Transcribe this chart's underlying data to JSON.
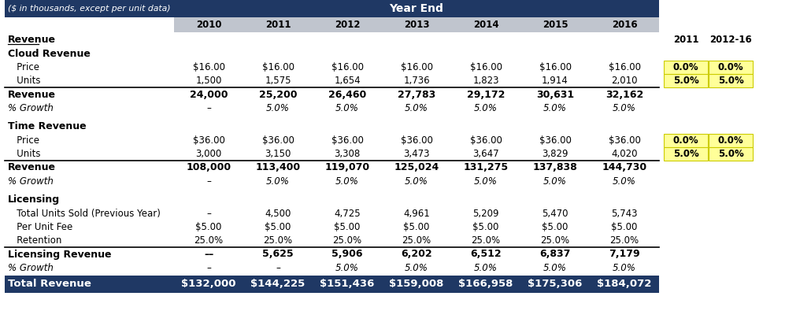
{
  "title_left": "($ in thousands, except per unit data)",
  "title_center": "Year End",
  "header_years": [
    "2010",
    "2011",
    "2012",
    "2013",
    "2014",
    "2015",
    "2016"
  ],
  "extra_headers": [
    "2011",
    "2012-16"
  ],
  "dark_blue": "#1F3864",
  "light_gray_header": "#C0C5CE",
  "yellow_bg": "#FFFF99",
  "yellow_border": "#CCCC00",
  "white": "#FFFFFF",
  "black": "#000000",
  "rows": [
    {
      "label": "Revenue",
      "values": [
        "",
        "",
        "",
        "",
        "",
        "",
        ""
      ],
      "style": "section_header"
    },
    {
      "label": "Cloud Revenue",
      "values": [
        "",
        "",
        "",
        "",
        "",
        "",
        ""
      ],
      "style": "subsection_header"
    },
    {
      "label": "   Price",
      "values": [
        "$16.00",
        "$16.00",
        "$16.00",
        "$16.00",
        "$16.00",
        "$16.00",
        "$16.00"
      ],
      "style": "normal",
      "extra": [
        "0.0%",
        "0.0%"
      ]
    },
    {
      "label": "   Units",
      "values": [
        "1,500",
        "1,575",
        "1,654",
        "1,736",
        "1,823",
        "1,914",
        "2,010"
      ],
      "style": "normal",
      "extra": [
        "5.0%",
        "5.0%"
      ]
    },
    {
      "label": "Revenue",
      "values": [
        "24,000",
        "25,200",
        "26,460",
        "27,783",
        "29,172",
        "30,631",
        "32,162"
      ],
      "style": "bold",
      "top_border": true
    },
    {
      "label": "% Growth",
      "values": [
        "–",
        "5.0%",
        "5.0%",
        "5.0%",
        "5.0%",
        "5.0%",
        "5.0%"
      ],
      "style": "italic"
    },
    {
      "label": "",
      "values": [
        "",
        "",
        "",
        "",
        "",
        "",
        ""
      ],
      "style": "spacer"
    },
    {
      "label": "Time Revenue",
      "values": [
        "",
        "",
        "",
        "",
        "",
        "",
        ""
      ],
      "style": "subsection_header"
    },
    {
      "label": "   Price",
      "values": [
        "$36.00",
        "$36.00",
        "$36.00",
        "$36.00",
        "$36.00",
        "$36.00",
        "$36.00"
      ],
      "style": "normal",
      "extra": [
        "0.0%",
        "0.0%"
      ]
    },
    {
      "label": "   Units",
      "values": [
        "3,000",
        "3,150",
        "3,308",
        "3,473",
        "3,647",
        "3,829",
        "4,020"
      ],
      "style": "normal",
      "extra": [
        "5.0%",
        "5.0%"
      ]
    },
    {
      "label": "Revenue",
      "values": [
        "108,000",
        "113,400",
        "119,070",
        "125,024",
        "131,275",
        "137,838",
        "144,730"
      ],
      "style": "bold",
      "top_border": true
    },
    {
      "label": "% Growth",
      "values": [
        "–",
        "5.0%",
        "5.0%",
        "5.0%",
        "5.0%",
        "5.0%",
        "5.0%"
      ],
      "style": "italic"
    },
    {
      "label": "",
      "values": [
        "",
        "",
        "",
        "",
        "",
        "",
        ""
      ],
      "style": "spacer"
    },
    {
      "label": "Licensing",
      "values": [
        "",
        "",
        "",
        "",
        "",
        "",
        ""
      ],
      "style": "subsection_header"
    },
    {
      "label": "   Total Units Sold (Previous Year)",
      "values": [
        "–",
        "4,500",
        "4,725",
        "4,961",
        "5,209",
        "5,470",
        "5,743"
      ],
      "style": "normal"
    },
    {
      "label": "   Per Unit Fee",
      "values": [
        "$5.00",
        "$5.00",
        "$5.00",
        "$5.00",
        "$5.00",
        "$5.00",
        "$5.00"
      ],
      "style": "normal"
    },
    {
      "label": "   Retention",
      "values": [
        "25.0%",
        "25.0%",
        "25.0%",
        "25.0%",
        "25.0%",
        "25.0%",
        "25.0%"
      ],
      "style": "normal"
    },
    {
      "label": "Licensing Revenue",
      "values": [
        "––",
        "5,625",
        "5,906",
        "6,202",
        "6,512",
        "6,837",
        "7,179"
      ],
      "style": "bold",
      "top_border": true
    },
    {
      "label": "% Growth",
      "values": [
        "–",
        "–",
        "5.0%",
        "5.0%",
        "5.0%",
        "5.0%",
        "5.0%"
      ],
      "style": "italic"
    }
  ],
  "total_row": {
    "label": "Total Revenue",
    "values": [
      "$132,000",
      "$144,225",
      "$151,436",
      "$159,008",
      "$166,958",
      "$175,306",
      "$184,072"
    ]
  },
  "fig_width": 10.16,
  "fig_height": 4.09,
  "dpi": 100
}
